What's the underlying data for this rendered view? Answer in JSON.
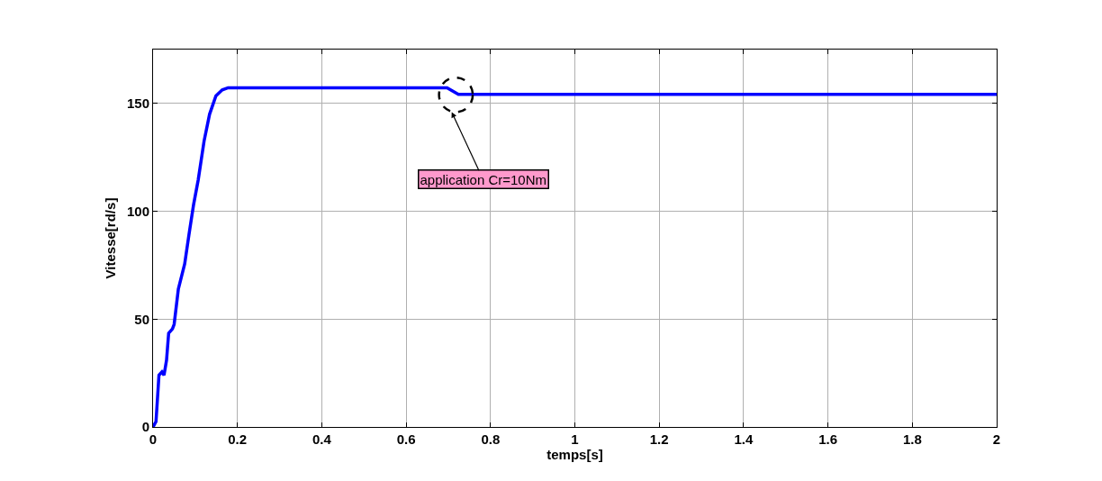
{
  "chart_data": {
    "type": "line",
    "xlabel": "temps[s]",
    "ylabel": "Vitesse[rd/s]",
    "series": [
      {
        "color": "#0000ff",
        "x": [
          0,
          0.007,
          0.014,
          0.021,
          0.026,
          0.032,
          0.037,
          0.046,
          0.05,
          0.06,
          0.075,
          0.085,
          0.096,
          0.107,
          0.121,
          0.134,
          0.149,
          0.164,
          0.178,
          0.697,
          0.724,
          2
        ],
        "values": [
          0,
          2.5,
          24,
          25.5,
          24,
          31,
          43.5,
          45.5,
          47.6,
          64,
          75.6,
          89,
          103,
          114.5,
          132.6,
          145,
          153.5,
          156.3,
          157.3,
          157.3,
          154.2,
          154.2
        ]
      }
    ],
    "annotations": [
      {
        "text": "application Cr=10Nm",
        "x": 0.708,
        "y": 146
      }
    ],
    "xlim": [
      0,
      2
    ],
    "xticks": [
      0,
      0.2,
      0.4,
      0.6,
      0.8,
      1,
      1.2,
      1.4,
      1.6,
      1.8,
      2
    ],
    "ylim": [
      0,
      175
    ],
    "yticks": [
      0,
      50,
      100,
      150
    ],
    "grid": true,
    "line_style": "solid",
    "marker": "none"
  }
}
